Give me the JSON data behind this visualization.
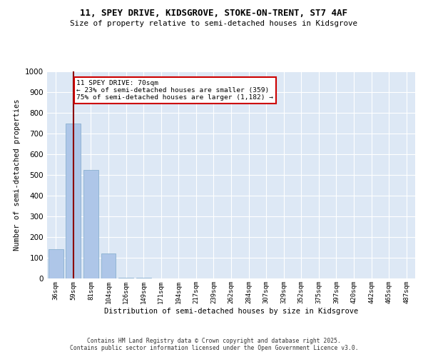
{
  "title1": "11, SPEY DRIVE, KIDSGROVE, STOKE-ON-TRENT, ST7 4AF",
  "title2": "Size of property relative to semi-detached houses in Kidsgrove",
  "xlabel": "Distribution of semi-detached houses by size in Kidsgrove",
  "ylabel": "Number of semi-detached properties",
  "bins": [
    "36sqm",
    "59sqm",
    "81sqm",
    "104sqm",
    "126sqm",
    "149sqm",
    "171sqm",
    "194sqm",
    "217sqm",
    "239sqm",
    "262sqm",
    "284sqm",
    "307sqm",
    "329sqm",
    "352sqm",
    "375sqm",
    "397sqm",
    "420sqm",
    "442sqm",
    "465sqm",
    "487sqm"
  ],
  "values": [
    140,
    750,
    525,
    120,
    5,
    2,
    1,
    1,
    0,
    0,
    0,
    0,
    0,
    0,
    0,
    0,
    0,
    0,
    0,
    0,
    0
  ],
  "bar_color": "#aec6e8",
  "bar_edge_color": "#8ab0d0",
  "property_line_x": 1,
  "property_line_color": "#8b0000",
  "annotation_text": "11 SPEY DRIVE: 70sqm\n← 23% of semi-detached houses are smaller (359)\n75% of semi-detached houses are larger (1,182) →",
  "annotation_box_color": "#ffffff",
  "annotation_box_edge": "#cc0000",
  "ylim": [
    0,
    1000
  ],
  "yticks": [
    0,
    100,
    200,
    300,
    400,
    500,
    600,
    700,
    800,
    900,
    1000
  ],
  "background_color": "#dde8f5",
  "footer1": "Contains HM Land Registry data © Crown copyright and database right 2025.",
  "footer2": "Contains public sector information licensed under the Open Government Licence v3.0."
}
